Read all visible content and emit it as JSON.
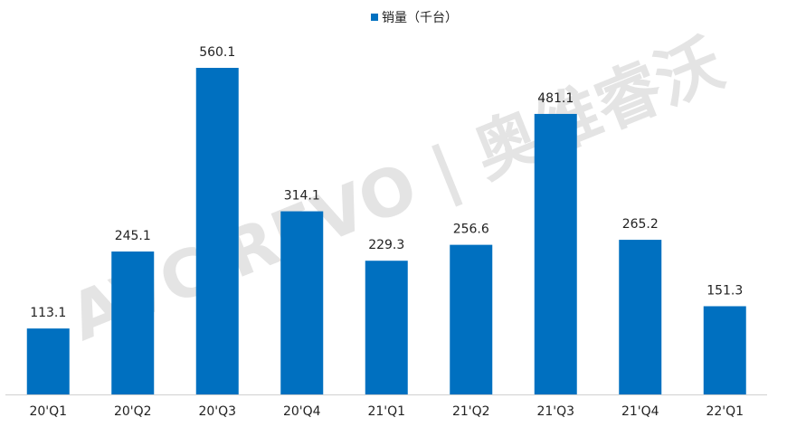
{
  "chart_data": {
    "type": "bar",
    "watermark": "AVC REVO | 奥维睿沃",
    "categories": [
      "20'Q1",
      "20'Q2",
      "20'Q3",
      "20'Q4",
      "21'Q1",
      "21'Q2",
      "21'Q3",
      "21'Q4",
      "22'Q1"
    ],
    "series": [
      {
        "name": "销量（千台）",
        "color": "#0070c0",
        "values": [
          113.1,
          245.1,
          560.1,
          314.1,
          229.3,
          256.6,
          481.1,
          265.2,
          151.3
        ]
      }
    ],
    "ylim": [
      0,
      600
    ]
  }
}
